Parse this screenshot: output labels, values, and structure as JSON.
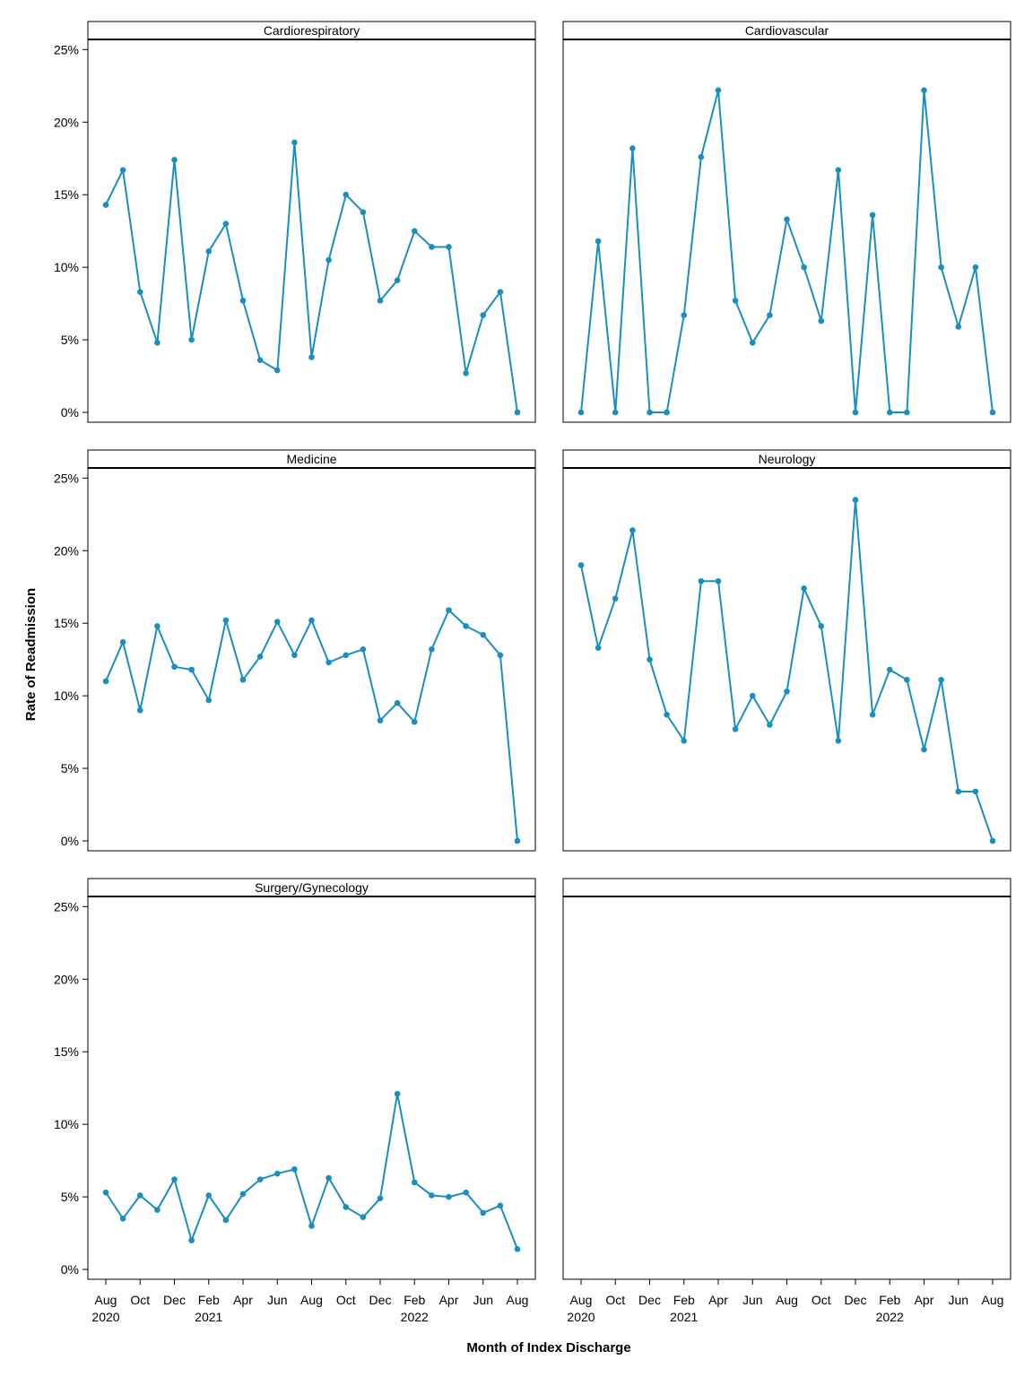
{
  "ylabel": "Rate of Readmission",
  "xlabel": "Month of Index Discharge",
  "months": [
    "Aug 2020",
    "Sep 2020",
    "Oct 2020",
    "Nov 2020",
    "Dec 2020",
    "Jan 2021",
    "Feb 2021",
    "Mar 2021",
    "Apr 2021",
    "May 2021",
    "Jun 2021",
    "Jul 2021",
    "Aug 2021",
    "Sep 2021",
    "Oct 2021",
    "Nov 2021",
    "Dec 2021",
    "Jan 2022",
    "Feb 2022",
    "Mar 2022",
    "Apr 2022",
    "May 2022",
    "Jun 2022",
    "Jul 2022",
    "Aug 2022"
  ],
  "x_tick_labels": [
    {
      "month": "Aug 2020",
      "label": "Aug",
      "year": "2020"
    },
    {
      "month": "Oct 2020",
      "label": "Oct",
      "year": ""
    },
    {
      "month": "Dec 2020",
      "label": "Dec",
      "year": ""
    },
    {
      "month": "Feb 2021",
      "label": "Feb",
      "year": "2021"
    },
    {
      "month": "Apr 2021",
      "label": "Apr",
      "year": ""
    },
    {
      "month": "Jun 2021",
      "label": "Jun",
      "year": ""
    },
    {
      "month": "Aug 2021",
      "label": "Aug",
      "year": ""
    },
    {
      "month": "Oct 2021",
      "label": "Oct",
      "year": ""
    },
    {
      "month": "Dec 2021",
      "label": "Dec",
      "year": ""
    },
    {
      "month": "Feb 2022",
      "label": "Feb",
      "year": "2022"
    },
    {
      "month": "Apr 2022",
      "label": "Apr",
      "year": ""
    },
    {
      "month": "Jun 2022",
      "label": "Jun",
      "year": ""
    },
    {
      "month": "Aug 2022",
      "label": "Aug",
      "year": ""
    }
  ],
  "y_tick_labels": [
    "0%",
    "5%",
    "10%",
    "15%",
    "20%",
    "25%"
  ],
  "colors": {
    "line": "#1a8fbf",
    "frame": "#000000"
  },
  "chart_data": [
    {
      "type": "line",
      "title": "Cardiorespiratory",
      "ylim": [
        0,
        25.7
      ],
      "values": [
        14.3,
        16.7,
        8.3,
        4.8,
        17.4,
        5.0,
        11.1,
        13.0,
        7.7,
        3.6,
        2.9,
        18.6,
        3.8,
        10.5,
        15.0,
        13.8,
        7.7,
        9.1,
        12.5,
        11.4,
        11.4,
        2.7,
        6.7,
        8.3,
        0.0
      ]
    },
    {
      "type": "line",
      "title": "Cardiovascular",
      "ylim": [
        0,
        25.7
      ],
      "values": [
        0.0,
        11.8,
        0.0,
        18.2,
        0.0,
        0.0,
        6.7,
        17.6,
        22.2,
        7.7,
        4.8,
        6.7,
        13.3,
        10.0,
        6.3,
        16.7,
        0.0,
        13.6,
        0.0,
        0.0,
        22.2,
        10.0,
        5.9,
        10.0,
        0.0
      ]
    },
    {
      "type": "line",
      "title": "Medicine",
      "ylim": [
        0,
        25.7
      ],
      "values": [
        11.0,
        13.7,
        9.0,
        14.8,
        12.0,
        11.8,
        9.7,
        15.2,
        11.1,
        12.7,
        15.1,
        12.8,
        15.2,
        12.3,
        12.8,
        13.2,
        8.3,
        9.5,
        8.2,
        13.2,
        15.9,
        14.8,
        14.2,
        12.8,
        0.0
      ]
    },
    {
      "type": "line",
      "title": "Neurology",
      "ylim": [
        0,
        25.7
      ],
      "values": [
        19.0,
        13.3,
        16.7,
        21.4,
        12.5,
        8.7,
        6.9,
        17.9,
        17.9,
        7.7,
        10.0,
        8.0,
        10.3,
        17.4,
        14.8,
        6.9,
        23.5,
        8.7,
        11.8,
        11.1,
        6.3,
        11.1,
        3.4,
        3.4,
        0.0
      ]
    },
    {
      "type": "line",
      "title": "Surgery/Gynecology",
      "ylim": [
        0,
        25.7
      ],
      "values": [
        5.3,
        3.5,
        5.1,
        4.1,
        6.2,
        2.0,
        5.1,
        3.4,
        5.2,
        6.2,
        6.6,
        6.9,
        3.0,
        6.3,
        4.3,
        3.6,
        4.9,
        12.1,
        6.0,
        5.1,
        5.0,
        5.3,
        3.9,
        4.4,
        1.4
      ]
    },
    {
      "type": "line",
      "title": "",
      "ylim": [
        0,
        25.7
      ],
      "values": []
    }
  ]
}
